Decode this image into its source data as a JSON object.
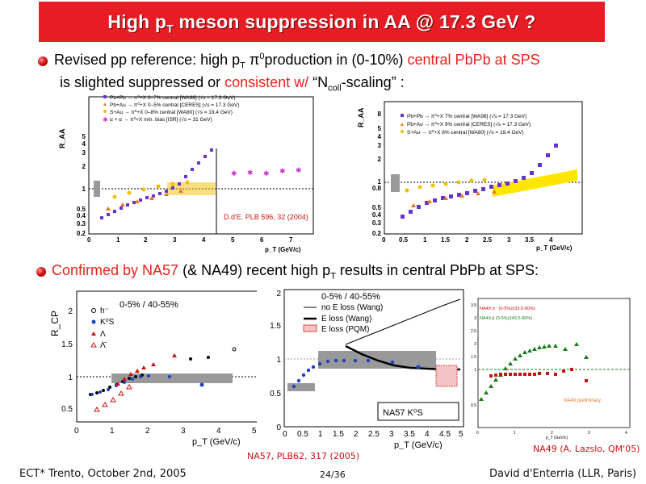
{
  "title": {
    "pre": "High p",
    "sub": "T",
    "post": " meson suppression in AA @ 17.3 GeV ?"
  },
  "bullet1": {
    "t1": "Revised pp reference: high p",
    "t1sub": "T",
    "t2": " π",
    "t2sup": "0",
    "t3": "production in (0-10%) ",
    "red1": "central PbPb at SPS",
    "t4": "is slighted suppressed or ",
    "red2": "consistent w/",
    "t5": "  “N",
    "t5sub": "coll",
    "t6": "-scaling” :"
  },
  "bullet2": {
    "red": "Confirmed by NA57",
    "t1": " (& NA49) recent high p",
    "sub": "T",
    "t2": " results in central PbPb at SPS:"
  },
  "fig1": {
    "ylabel": "R_AA",
    "xlabel": "p_T (GeV/c)",
    "legend": [
      "Pb+Pb → π⁰+X  0–7%  central [WA98] (√s = 17.3 GeV)",
      "Pb+Au → π⁰+X  0–5%  central [CERES] (√s = 17.3 GeV)",
      "S+Au → π⁰+X  0–8%  central [WA80] (√s = 19.4 GeV)",
      "α + α → π⁰+X min. bias [ISR] (√s = 31 GeV)"
    ],
    "citation": "D.d'E. PLB 596, 32 (2004)",
    "xticks": [
      "0",
      "1",
      "2",
      "3",
      "4",
      "5",
      "6",
      "7"
    ],
    "yticks": [
      "0.2",
      "0.3",
      "0.4",
      "0.5",
      "1",
      "2",
      "3",
      "4",
      "5"
    ]
  },
  "fig2": {
    "ylabel": "R_AA",
    "xlabel": "p_T (GeV/c)",
    "legend": [
      "Pb+Pb → π⁰+X  7% central [WA98] (√s = 17.3 GeV)",
      "Pb+Au → π⁰+X  9% central [CERES] (√s = 17.3 GeV)",
      "S+Au → π⁰+X  8% central [WA80] (√s = 19.4 GeV)"
    ],
    "xticks": [
      "0",
      "0.5",
      "1",
      "1.5",
      "2",
      "2.5",
      "3",
      "3.5",
      "4"
    ],
    "yticks": [
      "0.2",
      "0.3",
      "0.4",
      "0.5",
      "0.8",
      "1",
      "2",
      "3",
      "4",
      "5",
      "8"
    ]
  },
  "fig3": {
    "ylabel": "R_CP",
    "xlabel": "p_T (GeV/c)",
    "centrality": "0-5% / 40-55%",
    "legend": [
      "h⁻",
      "K⁰S",
      "Λ",
      "Λ̄"
    ],
    "xticks": [
      "0",
      "1",
      "2",
      "3",
      "4",
      "5"
    ],
    "yticks": [
      "0.5",
      "1",
      "1.5",
      "2"
    ]
  },
  "fig4": {
    "xlabel": "p_T (GeV/c)",
    "centrality": "0-5% / 40-55%",
    "legend": [
      "no E loss (Wang)",
      "E loss (Wang)",
      "E loss (PQM)"
    ],
    "label": "NA57 K⁰S",
    "xticks": [
      "0",
      "0.5",
      "1",
      "1.5",
      "2",
      "2.5",
      "3",
      "3.5",
      "4",
      "4.5",
      "5"
    ],
    "yticks": [
      "0",
      "0.5",
      "1",
      "1.5",
      "2"
    ]
  },
  "fig5": {
    "xlabel": "p_T (GeV/c)",
    "legend": [
      "NA49 π⁻ (0-5%)/(33.5-80%)",
      "NA49 p̄ (0-5%)/(43.5-80%)"
    ],
    "label": "NA49 preliminary",
    "xticks": [
      "0",
      "1",
      "2",
      "3",
      "4"
    ],
    "yticks": [
      "0.5",
      "1",
      "1.5",
      "2",
      "2.5",
      "3",
      "3.5"
    ]
  },
  "citations": {
    "na57": "NA57, PLB62, 317 (2005)",
    "na49": "NA49 (A. Lazslo, QM'05)"
  },
  "footer": {
    "left": "ECT* Trento, October 2nd, 2005",
    "center": "24/36",
    "right": "David d'Enterria (LLR, Paris)"
  }
}
